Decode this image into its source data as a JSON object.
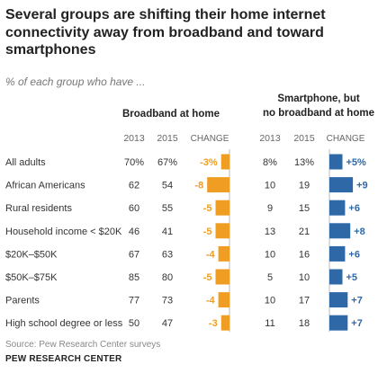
{
  "title": "Several groups are shifting their home internet connectivity away from broadband  and toward smartphones",
  "subtitle": "% of each group who have ...",
  "source": "Source: Pew Research Center surveys",
  "brand": "PEW RESEARCH CENTER",
  "colors": {
    "broadband": "#EF9E23",
    "smartphone": "#2F68A7",
    "text": "#333333",
    "muted": "#666666"
  },
  "chart_data": {
    "type": "bar",
    "categories": [
      "All adults",
      "African Americans",
      "Rural residents",
      "Household income < $20K",
      "$20K–$50K",
      "$50K–$75K",
      "Parents",
      "High school degree or less"
    ],
    "panels": [
      {
        "title_lines": [
          "Broadband at home"
        ],
        "column_headers": [
          "2013",
          "2015",
          "CHANGE"
        ],
        "values_2013": [
          70,
          62,
          60,
          46,
          67,
          85,
          77,
          50
        ],
        "values_2015": [
          67,
          54,
          55,
          41,
          63,
          80,
          73,
          47
        ],
        "change": [
          -3,
          -8,
          -5,
          -5,
          -4,
          -5,
          -4,
          -3
        ],
        "change_labels": [
          "-3%",
          "-8",
          "-5",
          "-5",
          "-4",
          "-5",
          "-4",
          "-3"
        ],
        "value_labels_2013": [
          "70%",
          "62",
          "60",
          "46",
          "67",
          "85",
          "77",
          "50"
        ],
        "value_labels_2015": [
          "67%",
          "54",
          "55",
          "41",
          "63",
          "80",
          "73",
          "47"
        ]
      },
      {
        "title_lines": [
          "Smartphone, but",
          "no broadband at home"
        ],
        "column_headers": [
          "2013",
          "2015",
          "CHANGE"
        ],
        "values_2013": [
          8,
          10,
          9,
          13,
          10,
          5,
          10,
          11
        ],
        "values_2015": [
          13,
          19,
          15,
          21,
          16,
          10,
          17,
          18
        ],
        "change": [
          5,
          9,
          6,
          8,
          6,
          5,
          7,
          7
        ],
        "change_labels": [
          "+5%",
          "+9",
          "+6",
          "+8",
          "+6",
          "+5",
          "+7",
          "+7"
        ],
        "value_labels_2013": [
          "8%",
          "10",
          "9",
          "13",
          "10",
          "5",
          "10",
          "11"
        ],
        "value_labels_2015": [
          "13%",
          "19",
          "15",
          "21",
          "16",
          "10",
          "17",
          "18"
        ]
      }
    ]
  }
}
